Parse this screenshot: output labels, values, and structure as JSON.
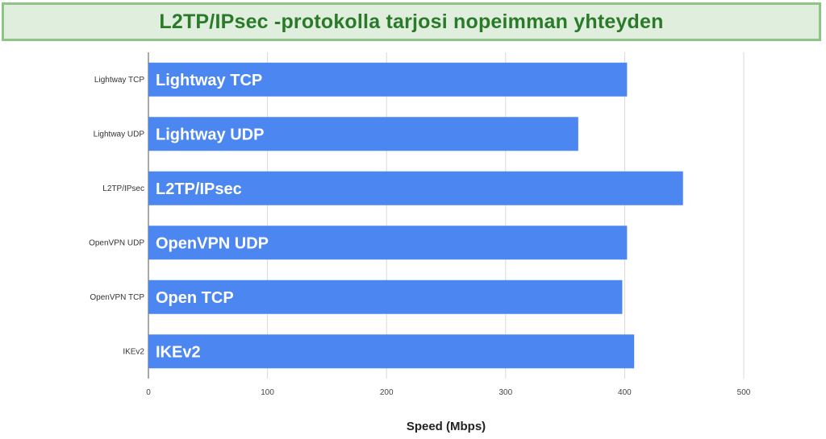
{
  "header": {
    "title": "L2TP/IPsec -protokolla tarjosi nopeimman yhteyden"
  },
  "colors": {
    "bar": "#4c86f0",
    "banner_bg": "#dfeedd",
    "banner_border": "#8fc487",
    "title_text": "#2a7a2a"
  },
  "chart_data": {
    "type": "bar",
    "orientation": "horizontal",
    "title": "L2TP/IPsec -protokolla tarjosi nopeimman yhteyden",
    "xlabel": "Speed (Mbps)",
    "ylabel": "",
    "xlim": [
      0,
      500
    ],
    "xticks": [
      0,
      100,
      200,
      300,
      400,
      500
    ],
    "grid": "vertical",
    "legend": "none",
    "categories": [
      "Lightway TCP",
      "Lightway UDP",
      "L2TP/IPsec",
      "OpenVPN UDP",
      "OpenVPN TCP",
      "IKEv2"
    ],
    "bar_labels": [
      "Lightway TCP",
      "Lightway UDP",
      "L2TP/IPsec",
      "OpenVPN UDP",
      "Open TCP",
      "IKEv2"
    ],
    "values": [
      402,
      361,
      449,
      402,
      398,
      408
    ]
  }
}
